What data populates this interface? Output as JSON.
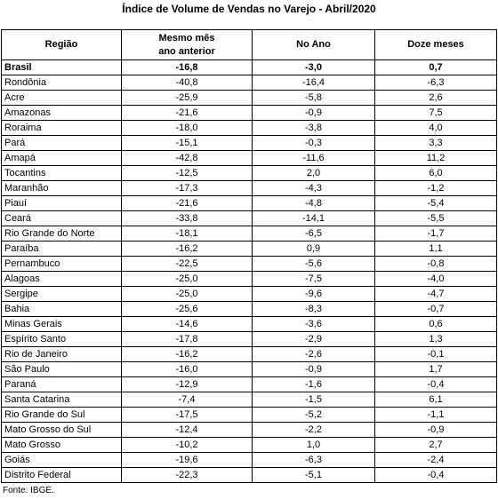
{
  "title": "Índice de Volume de Vendas no Varejo - Abril/2020",
  "table": {
    "header": [
      [
        "Região"
      ],
      [
        "Mesmo mês",
        "ano anterior"
      ],
      [
        "No Ano"
      ],
      [
        "Doze meses"
      ]
    ],
    "rows": [
      [
        "Brasil",
        "-16,8",
        "-3,0",
        "0,7"
      ],
      [
        "Rondônia",
        "-40,8",
        "-16,4",
        "-6,3"
      ],
      [
        "Acre",
        "-25,9",
        "-5,8",
        "2,6"
      ],
      [
        "Amazonas",
        "-21,6",
        "-0,9",
        "7,5"
      ],
      [
        "Roraima",
        "-18,0",
        "-3,8",
        "4,0"
      ],
      [
        "Pará",
        "-15,1",
        "-0,3",
        "3,3"
      ],
      [
        "Amapá",
        "-42,8",
        "-11,6",
        "11,2"
      ],
      [
        "Tocantins",
        "-12,5",
        "2,0",
        "6,0"
      ],
      [
        "Maranhão",
        "-17,3",
        "-4,3",
        "-1,2"
      ],
      [
        "Piauí",
        "-21,6",
        "-4,8",
        "-5,4"
      ],
      [
        "Ceará",
        "-33,8",
        "-14,1",
        "-5,5"
      ],
      [
        "Rio Grande do Norte",
        "-18,1",
        "-6,5",
        "-1,7"
      ],
      [
        "Paraíba",
        "-16,2",
        "0,9",
        "1,1"
      ],
      [
        "Pernambuco",
        "-22,5",
        "-5,6",
        "-0,8"
      ],
      [
        "Alagoas",
        "-25,0",
        "-7,5",
        "-4,0"
      ],
      [
        "Sergipe",
        "-25,0",
        "-9,6",
        "-4,7"
      ],
      [
        "Bahia",
        "-25,6",
        "-8,3",
        "-0,7"
      ],
      [
        "Minas Gerais",
        "-14,6",
        "-3,6",
        "0,6"
      ],
      [
        "Espírito Santo",
        "-17,8",
        "-2,9",
        "1,3"
      ],
      [
        "Rio de Janeiro",
        "-16,2",
        "-2,6",
        "-0,1"
      ],
      [
        "São Paulo",
        "-16,0",
        "-0,9",
        "1,7"
      ],
      [
        "Paraná",
        "-12,9",
        "-1,6",
        "-0,4"
      ],
      [
        "Santa Catarina",
        "-7,4",
        "-1,5",
        "6,1"
      ],
      [
        "Rio Grande do Sul",
        "-17,5",
        "-5,2",
        "-1,1"
      ],
      [
        "Mato Grosso do Sul",
        "-12,4",
        "-2,2",
        "-0,9"
      ],
      [
        "Mato Grosso",
        "-10,2",
        "1,0",
        "2,7"
      ],
      [
        "Goiás",
        "-19,6",
        "-6,3",
        "-2,4"
      ],
      [
        "Distrito Federal",
        "-22,3",
        "-5,1",
        "-0,4"
      ]
    ]
  },
  "source": "Fonte: IBGE."
}
